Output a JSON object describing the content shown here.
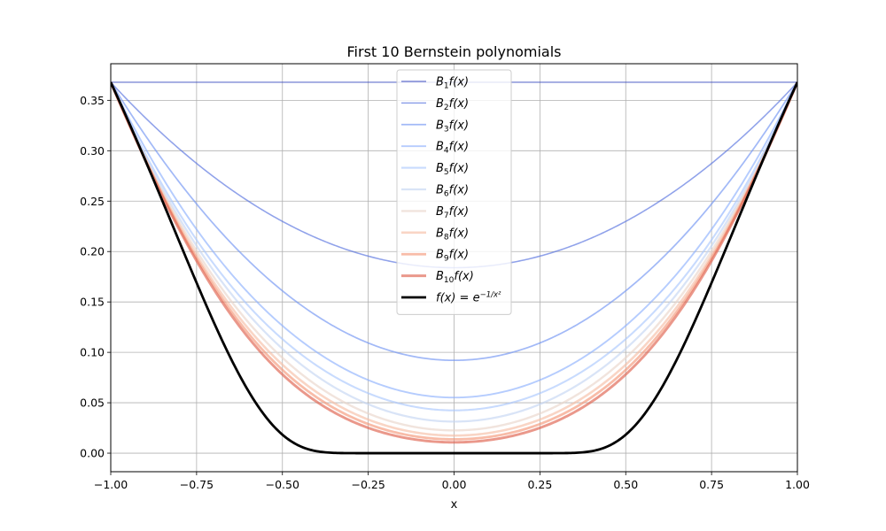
{
  "chart_data": {
    "type": "line",
    "title": "First 10 Bernstein polynomials",
    "xlabel": "x",
    "ylabel": "",
    "xlim": [
      -1.0,
      1.0
    ],
    "ylim": [
      -0.0184,
      0.3863
    ],
    "xticks": [
      -1.0,
      -0.75,
      -0.5,
      -0.25,
      0.0,
      0.25,
      0.5,
      0.75,
      1.0
    ],
    "xtick_labels": [
      "−1.00",
      "−0.75",
      "−0.50",
      "−0.25",
      "0.00",
      "0.25",
      "0.50",
      "0.75",
      "1.00"
    ],
    "yticks": [
      0.0,
      0.05,
      0.1,
      0.15,
      0.2,
      0.25,
      0.3,
      0.35
    ],
    "ytick_labels": [
      "0.00",
      "0.05",
      "0.10",
      "0.15",
      "0.20",
      "0.25",
      "0.30",
      "0.35"
    ],
    "grid": true,
    "legend_position": "top-center",
    "function": "exp(-1/x^2)",
    "series": [
      {
        "name": "B_1 f(x)",
        "legend": {
          "base": "B",
          "sub": "1",
          "rest": "f(x)"
        },
        "degree": 1,
        "color": "#3b4cc0"
      },
      {
        "name": "B_2 f(x)",
        "legend": {
          "base": "B",
          "sub": "2",
          "rest": "f(x)"
        },
        "degree": 2,
        "color": "#5470de"
      },
      {
        "name": "B_3 f(x)",
        "legend": {
          "base": "B",
          "sub": "3",
          "rest": "f(x)"
        },
        "degree": 3,
        "color": "#7093f3"
      },
      {
        "name": "B_4 f(x)",
        "legend": {
          "base": "B",
          "sub": "4",
          "rest": "f(x)"
        },
        "degree": 4,
        "color": "#8db0fe"
      },
      {
        "name": "B_5 f(x)",
        "legend": {
          "base": "B",
          "sub": "5",
          "rest": "f(x)"
        },
        "degree": 5,
        "color": "#aac7fd"
      },
      {
        "name": "B_6 f(x)",
        "legend": {
          "base": "B",
          "sub": "6",
          "rest": "f(x)"
        },
        "degree": 6,
        "color": "#c5d6f2"
      },
      {
        "name": "B_7 f(x)",
        "legend": {
          "base": "B",
          "sub": "7",
          "rest": "f(x)"
        },
        "degree": 7,
        "color": "#e9d5cb"
      },
      {
        "name": "B_8 f(x)",
        "legend": {
          "base": "B",
          "sub": "8",
          "rest": "f(x)"
        },
        "degree": 8,
        "color": "#f6bfa6"
      },
      {
        "name": "B_9 f(x)",
        "legend": {
          "base": "B",
          "sub": "9",
          "rest": "f(x)"
        },
        "degree": 9,
        "color": "#f4987a"
      },
      {
        "name": "B_10 f(x)",
        "legend": {
          "base": "B",
          "sub": "10",
          "rest": "f(x)"
        },
        "degree": 10,
        "color": "#de614d"
      },
      {
        "name": "f(x) = e^(-1/x^2)",
        "legend": {
          "base": "f(x) = e",
          "sup": "−1/x²"
        },
        "degree": null,
        "color": "#000000"
      }
    ]
  }
}
